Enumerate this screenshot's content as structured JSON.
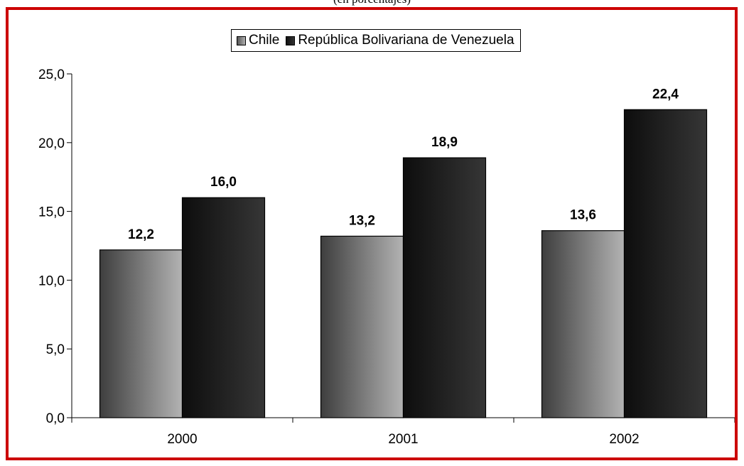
{
  "caption": "(en porcentajes)",
  "chart_data": {
    "type": "bar",
    "title": "",
    "xlabel": "",
    "ylabel": "",
    "categories": [
      "2000",
      "2001",
      "2002"
    ],
    "series": [
      {
        "name": "Chile",
        "values": [
          12.2,
          13.2,
          13.6
        ],
        "labels": [
          "12,2",
          "13,2",
          "13,6"
        ]
      },
      {
        "name": "República Bolivariana de Venezuela",
        "values": [
          16.0,
          18.9,
          22.4
        ],
        "labels": [
          "16,0",
          "18,9",
          "22,4"
        ]
      }
    ],
    "ylim": [
      0,
      25
    ],
    "yticks": [
      0,
      5,
      10,
      15,
      20,
      25
    ],
    "ytick_labels": [
      "0,0",
      "5,0",
      "10,0",
      "15,0",
      "20,0",
      "25,0"
    ],
    "grid": false,
    "legend_position": "top-center",
    "colors": {
      "frame": "#cc0000",
      "chile_dark": "#555555",
      "chile_light": "#b0b0b0",
      "venezuela_dark": "#111111",
      "venezuela_light": "#333333"
    }
  }
}
